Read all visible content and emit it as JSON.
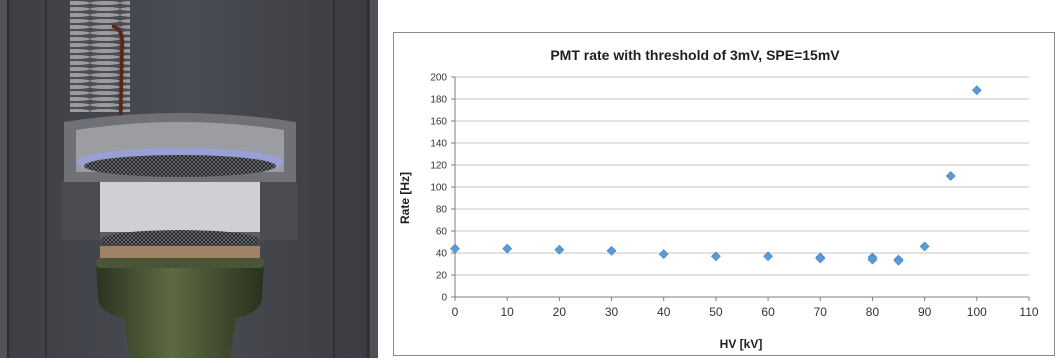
{
  "render": {
    "description": "Cross-section 3D render of a PMT assembly with mesh grids, a coiled spring and a signal wire",
    "colors": {
      "background": "#55575e",
      "housing": "#6f7176",
      "tube_body": "#3f4a2e",
      "cathode": "#a08266",
      "wire": "#5c2412",
      "mesh_ring": "#9aa0d6"
    }
  },
  "chart_data": {
    "type": "scatter",
    "title": "PMT rate with threshold of 3mV, SPE=15mV",
    "xlabel": "HV [kV]",
    "ylabel": "Rate [Hz]",
    "xlim": [
      0,
      110
    ],
    "ylim": [
      0,
      200
    ],
    "xticks": [
      0,
      10,
      20,
      30,
      40,
      50,
      60,
      70,
      80,
      90,
      100,
      110
    ],
    "yticks": [
      0,
      20,
      40,
      60,
      80,
      100,
      120,
      140,
      160,
      180,
      200
    ],
    "grid": "horizontal",
    "legend": "none",
    "marker": "diamond",
    "marker_color": "#5b9bd5",
    "x": [
      0,
      10,
      20,
      30,
      40,
      50,
      60,
      70,
      70,
      80,
      80,
      85,
      85,
      90,
      95,
      100
    ],
    "y": [
      44,
      44,
      43,
      42,
      39,
      37,
      37,
      36,
      35,
      36,
      34,
      34,
      33,
      46,
      110,
      188
    ]
  }
}
